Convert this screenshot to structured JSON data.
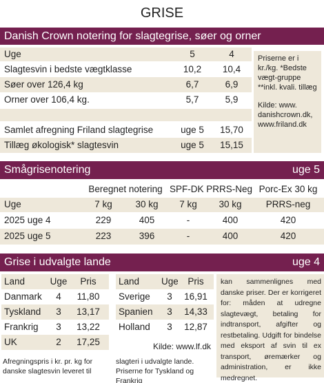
{
  "title": "GRISE",
  "section1": {
    "heading": "Danish Crown notering for slagtegrise, søer og orner",
    "header": [
      "Uge",
      "5",
      "4"
    ],
    "rows": [
      [
        "Slagtesvin i bedste vægtklasse",
        "10,2",
        "10,4"
      ],
      [
        "Søer over 126,4 kg",
        "6,7",
        "6,9"
      ],
      [
        "Orner over 106,4 kg.",
        "5,7",
        "5,9"
      ]
    ],
    "extra_rows": [
      [
        "Samlet afregning Friland slagtegrise",
        "uge 5",
        "15,70"
      ],
      [
        "Tillæg økologisk* slagtesvin",
        "uge 5",
        "15,15"
      ]
    ],
    "note": "Priserne er i kr./kg. *Bedste vægt-gruppe **inkl. kvali. tillæg",
    "source": "Kilde: www. danishcrown.dk, www.friland.dk"
  },
  "section2": {
    "heading": "Smågrisenotering",
    "week": "uge 5",
    "group_headers": [
      "Beregnet notering",
      "SPF-DK PRRS-Neg",
      "Porc-Ex 30 kg"
    ],
    "header": [
      "Uge",
      "7 kg",
      "30 kg",
      "7 kg",
      "30 kg",
      "PRRS-neg"
    ],
    "rows": [
      [
        "2025 uge 4",
        "229",
        "405",
        "-",
        "400",
        "420"
      ],
      [
        "2025 uge 5",
        "223",
        "396",
        "-",
        "400",
        "420"
      ]
    ]
  },
  "section3": {
    "heading": "Grise i udvalgte lande",
    "week": "uge 4",
    "tables": [
      {
        "header": [
          "Land",
          "Uge",
          "Pris"
        ],
        "rows": [
          [
            "Danmark",
            "4",
            "11,80"
          ],
          [
            "Tyskland",
            "3",
            "13,17"
          ],
          [
            "Frankrig",
            "3",
            "13,22"
          ],
          [
            "UK",
            "2",
            "17,25"
          ]
        ]
      },
      {
        "header": [
          "Land",
          "Uge",
          "Pris"
        ],
        "rows": [
          [
            "Sverige",
            "3",
            "16,91"
          ],
          [
            "Spanien",
            "3",
            "14,33"
          ],
          [
            "Holland",
            "3",
            "12,87"
          ]
        ]
      }
    ],
    "source": "Kilde: www.lf.dk",
    "text": [
      "Afregningspris i kr. pr. kg for danske slagtesvin leveret til",
      "slagteri i udvalgte lande. Priserne for Tyskland og Frankrig",
      "kan sammenlignes med danske priser. Der er korrigeret for: måden at udregne slagtevægt, betaling for indtransport, afgifter og restbetaling. Udgift for bindelse med eksport af svin til ex transport, øremærker og administration, er ikke medregnet."
    ]
  }
}
